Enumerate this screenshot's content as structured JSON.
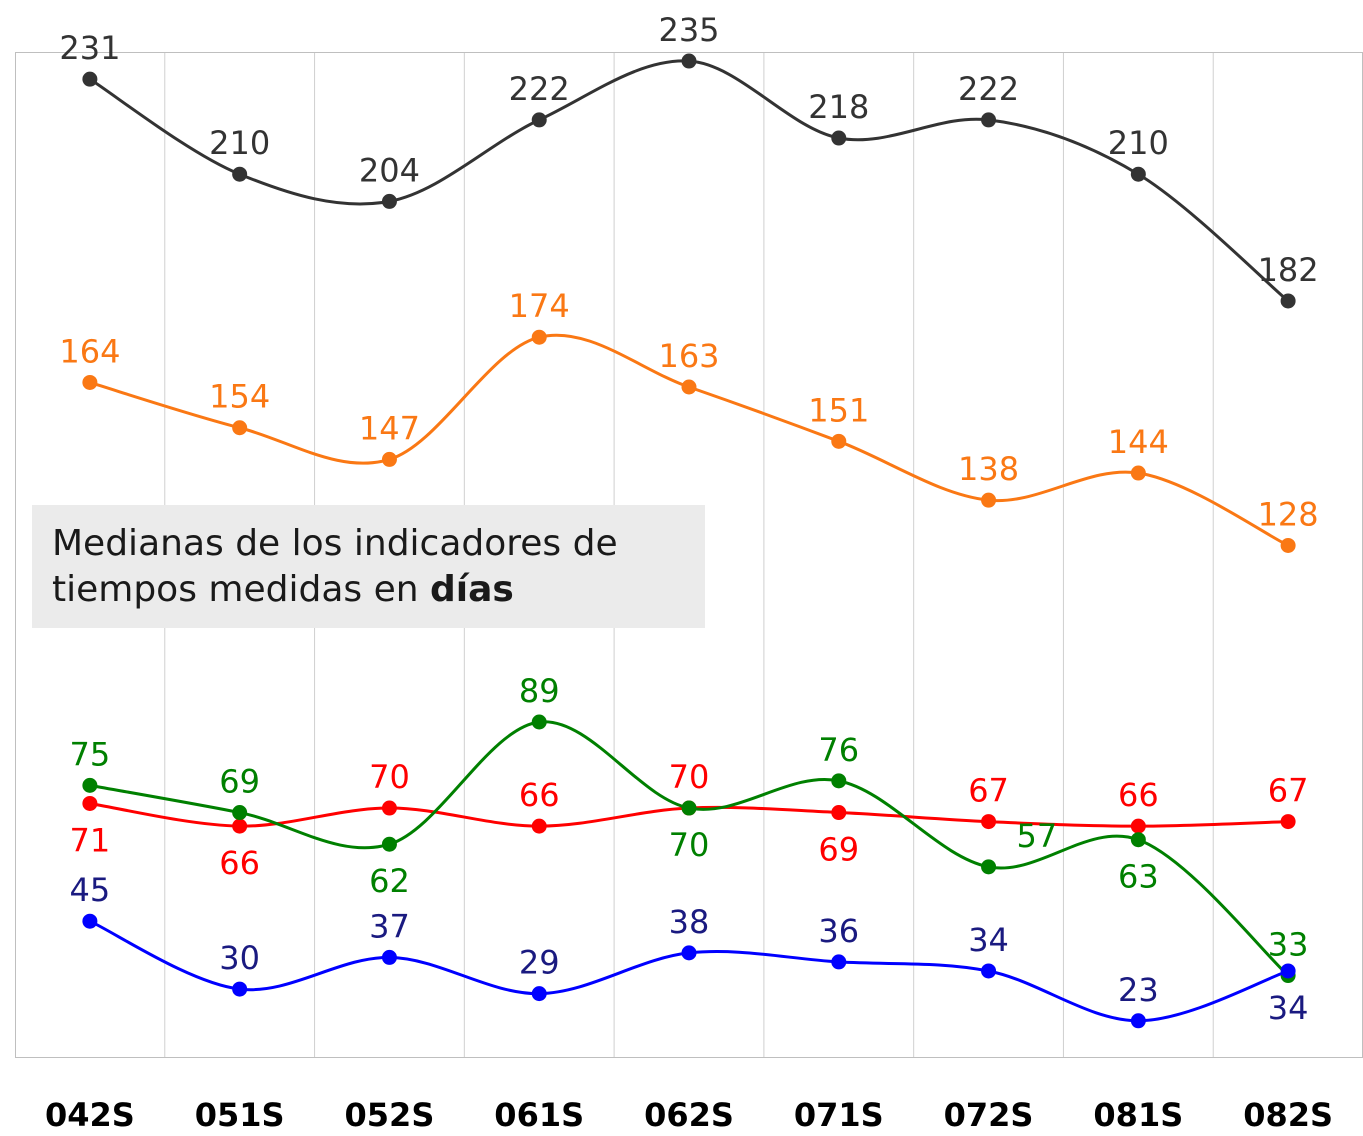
{
  "chart_data": {
    "type": "line",
    "annotation": {
      "text": "Medianas de los indicadores de tiempos medidas en",
      "emphasis": "días"
    },
    "categories": [
      "042S",
      "051S",
      "052S",
      "061S",
      "062S",
      "071S",
      "072S",
      "081S",
      "082S"
    ],
    "ylim": [
      15,
      237
    ],
    "smooth": true,
    "series": [
      {
        "color": "#333333",
        "label_color": "#333333",
        "values": [
          231,
          210,
          204,
          222,
          235,
          218,
          222,
          210,
          182
        ]
      },
      {
        "color": "#fa7814",
        "label_color": "#fa7814",
        "values": [
          164,
          154,
          147,
          174,
          163,
          151,
          138,
          144,
          128
        ]
      },
      {
        "color": "#ff0000",
        "label_color": "#ff0000",
        "values": [
          71,
          66,
          70,
          66,
          70,
          69,
          67,
          66,
          67
        ]
      },
      {
        "color": "#008000",
        "label_color": "#008000",
        "values": [
          75,
          69,
          62,
          89,
          70,
          76,
          57,
          63,
          33
        ]
      },
      {
        "color": "#0000ff",
        "label_color": "#1a1a80",
        "values": [
          45,
          30,
          37,
          29,
          38,
          36,
          34,
          23,
          34
        ]
      }
    ]
  }
}
